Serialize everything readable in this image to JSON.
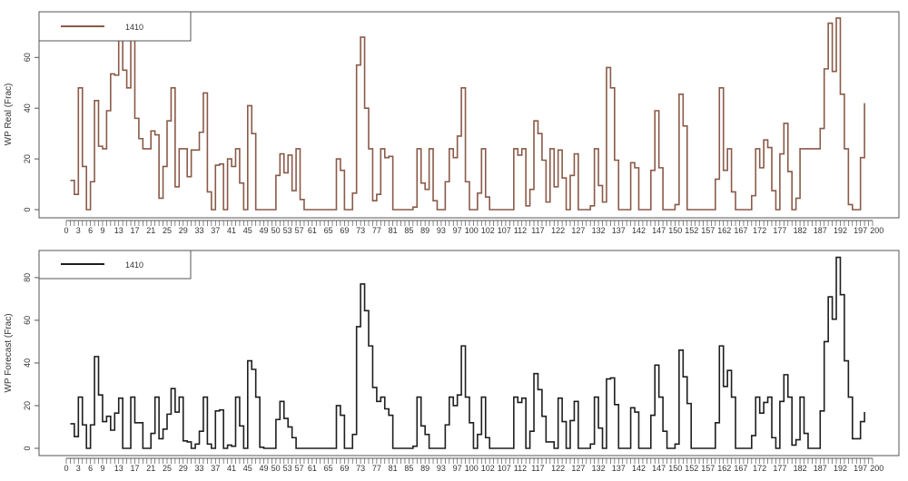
{
  "chart_data": [
    {
      "type": "line",
      "step": true,
      "ylabel": "WP Real (Frac)",
      "xlim": [
        0,
        200
      ],
      "ylim": [
        0,
        78
      ],
      "yticks": [
        0,
        20,
        40,
        60
      ],
      "xtick_labels": [
        "0",
        "3",
        "6",
        "9",
        "13",
        "17",
        "21",
        "25",
        "29",
        "33",
        "37",
        "41",
        "45",
        "49",
        "50",
        "53",
        "57",
        "61",
        "65",
        "69",
        "73",
        "77",
        "81",
        "85",
        "89",
        "93",
        "97",
        "100",
        "102",
        "107",
        "112",
        "117",
        "122",
        "127",
        "132",
        "137",
        "142",
        "147",
        "150",
        "152",
        "157",
        "162",
        "167",
        "172",
        "177",
        "182",
        "187",
        "192",
        "197",
        "200"
      ],
      "legend": {
        "position": "top-left",
        "entries": [
          "1410"
        ]
      },
      "grid": false,
      "color": "#8a5a48",
      "x_start": 1,
      "series": [
        {
          "name": "1410",
          "values": [
            11.5,
            6,
            48,
            17,
            0,
            11,
            43,
            25,
            24,
            39,
            53.5,
            53,
            72,
            55,
            48,
            71,
            36,
            28,
            24,
            24,
            31,
            29.5,
            4.5,
            17,
            35,
            48,
            9,
            24,
            24,
            13,
            23.5,
            23.5,
            30.5,
            46,
            7,
            0,
            17.5,
            18,
            0,
            20,
            17,
            24,
            10.5,
            0,
            41,
            30,
            0,
            0,
            0,
            0,
            0,
            13.5,
            22,
            14.5,
            21.5,
            7.5,
            24,
            4,
            0,
            0,
            0,
            0,
            0,
            0,
            0,
            0,
            20,
            15.5,
            0,
            0,
            6.5,
            57,
            68,
            40,
            24,
            3.5,
            6,
            24,
            20.5,
            21,
            0,
            0,
            0,
            0,
            0,
            1,
            24,
            10.5,
            8,
            24,
            3.5,
            0,
            0,
            11,
            24,
            20.5,
            29,
            48,
            11,
            0,
            0,
            6.5,
            24,
            5,
            0,
            0,
            0,
            0,
            0,
            0,
            24,
            21.5,
            24,
            1.5,
            8,
            35,
            30,
            19.5,
            3,
            24,
            9,
            23.5,
            12.5,
            0,
            13.5,
            22,
            0,
            0,
            0,
            1.5,
            24,
            9.5,
            3,
            56,
            48,
            19.5,
            0,
            0,
            0,
            18.5,
            16.5,
            0,
            0,
            0,
            15.5,
            39,
            16.5,
            0,
            0,
            0,
            2,
            45.5,
            33,
            0,
            0,
            0,
            0,
            0,
            0,
            0,
            12,
            48,
            15.5,
            24,
            7,
            0,
            0,
            0,
            0,
            5.5,
            24,
            16.5,
            27.5,
            24.5,
            7.5,
            0,
            22,
            34,
            15,
            0,
            4.5,
            24,
            24,
            24,
            24,
            24,
            32,
            55.5,
            73.5,
            54.5,
            75.5,
            45.5,
            24,
            2,
            0,
            0,
            20.5,
            42
          ]
        }
      ]
    },
    {
      "type": "line",
      "step": true,
      "ylabel": "WP Forecast (Frac)",
      "xlim": [
        0,
        200
      ],
      "ylim": [
        0,
        92.7
      ],
      "yticks": [
        0,
        20,
        40,
        60,
        80
      ],
      "xtick_labels": [
        "0",
        "3",
        "6",
        "9",
        "13",
        "17",
        "21",
        "25",
        "29",
        "33",
        "37",
        "41",
        "45",
        "49",
        "50",
        "53",
        "57",
        "61",
        "65",
        "69",
        "73",
        "77",
        "81",
        "85",
        "89",
        "93",
        "97",
        "100",
        "102",
        "107",
        "112",
        "117",
        "122",
        "127",
        "132",
        "137",
        "142",
        "147",
        "150",
        "152",
        "157",
        "162",
        "167",
        "172",
        "177",
        "182",
        "187",
        "192",
        "197",
        "200"
      ],
      "legend": {
        "position": "top-left",
        "entries": [
          "1410"
        ]
      },
      "grid": false,
      "color": "#1e1e1e",
      "x_start": 1,
      "series": [
        {
          "name": "1410",
          "values": [
            11.5,
            5.5,
            24,
            11,
            0,
            11,
            43,
            25,
            12.5,
            15,
            8.5,
            16.5,
            23.5,
            0,
            0,
            24,
            12,
            12,
            0,
            0,
            7,
            24,
            4.5,
            9,
            16,
            28,
            17,
            24,
            3.5,
            3,
            0,
            2,
            8,
            24,
            2,
            0,
            17.5,
            18,
            0,
            1.5,
            1,
            24,
            10.5,
            0,
            41,
            37,
            24,
            0.5,
            0,
            0,
            0,
            13.5,
            22,
            14,
            10,
            5,
            0,
            0,
            0,
            0,
            0,
            0,
            0,
            0,
            0,
            0,
            20,
            15.5,
            0,
            0,
            6.5,
            57,
            77,
            64.5,
            48,
            28.5,
            22,
            24,
            18.5,
            15.5,
            0,
            0,
            0,
            0,
            0,
            1,
            24,
            10.5,
            6.5,
            0,
            0,
            0,
            0,
            11,
            24,
            20,
            25,
            48,
            24,
            12,
            0,
            6.5,
            24,
            5,
            0,
            0,
            0,
            0,
            0,
            0,
            24,
            21.5,
            23.5,
            0,
            8,
            35,
            27.5,
            15,
            3,
            3,
            0,
            23.5,
            12.5,
            0,
            13,
            22,
            0,
            0,
            0,
            2,
            24,
            9.5,
            0,
            32.5,
            33,
            20.5,
            0,
            0,
            0,
            19,
            17,
            0,
            0,
            0,
            15.5,
            39,
            24,
            8,
            0,
            0,
            2,
            46,
            33.5,
            21,
            0,
            0,
            0,
            0,
            0,
            0,
            12,
            48,
            29,
            36.5,
            24,
            0,
            0,
            0,
            0,
            6,
            24,
            16.5,
            21.5,
            24,
            5,
            0,
            22,
            34.5,
            24,
            1.5,
            4,
            24,
            7,
            0,
            0,
            0,
            17.5,
            50,
            71,
            60.5,
            89.5,
            72,
            41,
            24,
            4.5,
            4.5,
            12.5,
            17
          ]
        }
      ]
    }
  ]
}
